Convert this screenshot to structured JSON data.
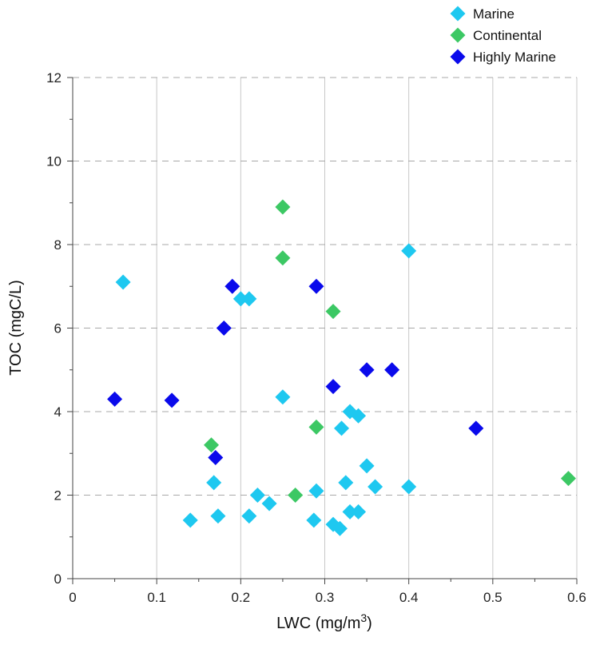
{
  "chart_data": {
    "type": "scatter",
    "title": "",
    "xlabel": "LWC (mg/m",
    "xlabel_superscript": "3",
    "xlabel_suffix": ")",
    "ylabel": "TOC (mgC/L)",
    "xlim": [
      0,
      0.6
    ],
    "ylim": [
      0,
      12
    ],
    "xticks": [
      "0",
      "0.1",
      "0.2",
      "0.3",
      "0.4",
      "0.5",
      "0.6"
    ],
    "yticks": [
      "0",
      "2",
      "4",
      "6",
      "8",
      "10",
      "12"
    ],
    "grid": {
      "x": "solid-light-gray",
      "y": "dashed-gray"
    },
    "legend_position": "top-right",
    "marker": "diamond",
    "series": [
      {
        "name": "Marine",
        "color": "#1ec8f0",
        "points": [
          [
            0.06,
            7.1
          ],
          [
            0.14,
            1.4
          ],
          [
            0.168,
            2.3
          ],
          [
            0.173,
            1.5
          ],
          [
            0.2,
            6.7
          ],
          [
            0.21,
            6.7
          ],
          [
            0.21,
            1.5
          ],
          [
            0.22,
            2.0
          ],
          [
            0.234,
            1.8
          ],
          [
            0.25,
            4.35
          ],
          [
            0.287,
            1.4
          ],
          [
            0.29,
            2.1
          ],
          [
            0.31,
            1.3
          ],
          [
            0.318,
            1.2
          ],
          [
            0.32,
            3.6
          ],
          [
            0.325,
            2.3
          ],
          [
            0.33,
            1.6
          ],
          [
            0.33,
            4.0
          ],
          [
            0.34,
            1.6
          ],
          [
            0.34,
            3.9
          ],
          [
            0.35,
            2.7
          ],
          [
            0.36,
            2.2
          ],
          [
            0.4,
            2.2
          ],
          [
            0.4,
            7.85
          ]
        ]
      },
      {
        "name": "Continental",
        "color": "#3cc864",
        "points": [
          [
            0.165,
            3.2
          ],
          [
            0.25,
            8.9
          ],
          [
            0.25,
            7.68
          ],
          [
            0.265,
            2.0
          ],
          [
            0.29,
            3.63
          ],
          [
            0.31,
            6.4
          ],
          [
            0.59,
            2.4
          ]
        ]
      },
      {
        "name": "Highly Marine",
        "color": "#0a0aeb",
        "points": [
          [
            0.05,
            4.3
          ],
          [
            0.118,
            4.27
          ],
          [
            0.17,
            2.9
          ],
          [
            0.18,
            6.0
          ],
          [
            0.19,
            7.0
          ],
          [
            0.29,
            7.0
          ],
          [
            0.31,
            4.6
          ],
          [
            0.35,
            5.0
          ],
          [
            0.38,
            5.0
          ],
          [
            0.48,
            3.6
          ]
        ]
      }
    ]
  }
}
